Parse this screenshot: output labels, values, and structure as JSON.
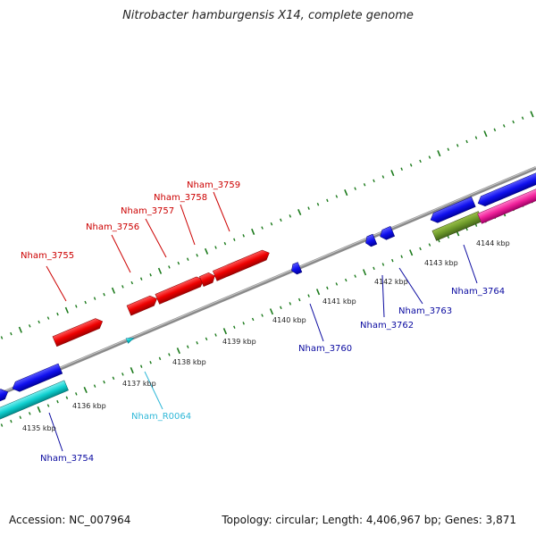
{
  "title": "Nitrobacter hamburgensis X14, complete genome",
  "footer": {
    "accession": "Accession: NC_007964",
    "summary": "Topology: circular; Length: 4,406,967 bp; Genes: 3,871"
  },
  "colors": {
    "backbone": "#8a8a8a",
    "ticks": "#1b7a1b",
    "upper_label": "#cc0000",
    "lower_label": "#0a0aa0",
    "rna_label": "#30b8d8",
    "kbp_label": "#222222"
  },
  "kbp_marks": [
    {
      "label": "4135 kbp"
    },
    {
      "label": "4136 kbp"
    },
    {
      "label": "4137 kbp"
    },
    {
      "label": "4138 kbp"
    },
    {
      "label": "4139 kbp"
    },
    {
      "label": "4140 kbp"
    },
    {
      "label": "4141 kbp"
    },
    {
      "label": "4142 kbp"
    },
    {
      "label": "4143 kbp"
    },
    {
      "label": "4144 kbp"
    }
  ],
  "gene_labels": [
    {
      "name": "Nham_3755",
      "strand": "forward"
    },
    {
      "name": "Nham_3756",
      "strand": "forward"
    },
    {
      "name": "Nham_3757",
      "strand": "forward"
    },
    {
      "name": "Nham_3758",
      "strand": "forward"
    },
    {
      "name": "Nham_3759",
      "strand": "forward"
    },
    {
      "name": "Nham_3754",
      "strand": "reverse"
    },
    {
      "name": "Nham_R0064",
      "strand": "rna"
    },
    {
      "name": "Nham_3760",
      "strand": "reverse"
    },
    {
      "name": "Nham_3762",
      "strand": "reverse"
    },
    {
      "name": "Nham_3763",
      "strand": "reverse"
    },
    {
      "name": "Nham_3764",
      "strand": "reverse"
    }
  ]
}
